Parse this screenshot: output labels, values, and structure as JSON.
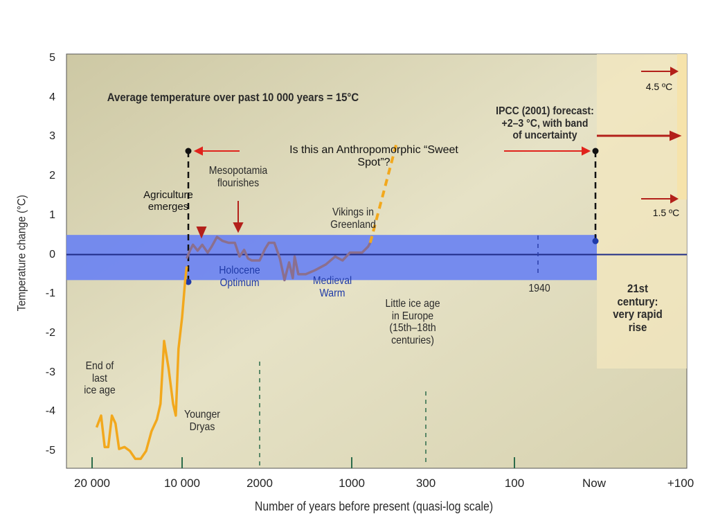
{
  "chart_data": {
    "type": "line",
    "xlabel": "Number of years before present (quasi-log scale)",
    "ylabel": "Temperature change (°C)",
    "ylim": [
      -5.3,
      5
    ],
    "yticks": [
      "5",
      "4",
      "3",
      "2",
      "1",
      "0",
      "-1",
      "-2",
      "-3",
      "-4",
      "-5"
    ],
    "xticks": [
      "20 000",
      "10 000",
      "2000",
      "1000",
      "300",
      "100",
      "Now",
      "+100"
    ],
    "grid": false,
    "band": {
      "label": "Anthropomorphic sweet spot band",
      "ymin": -0.65,
      "ymax": 0.5,
      "color": "#6f86f0"
    },
    "series": [
      {
        "color": "#f2a81d",
        "points": [
          [
            0.05,
            -4.4
          ],
          [
            0.1,
            -4.1
          ],
          [
            0.14,
            -4.9
          ],
          [
            0.18,
            -4.9
          ],
          [
            0.22,
            -4.1
          ],
          [
            0.26,
            -4.3
          ],
          [
            0.3,
            -4.95
          ],
          [
            0.36,
            -4.9
          ],
          [
            0.42,
            -5.0
          ],
          [
            0.48,
            -5.2
          ],
          [
            0.54,
            -5.2
          ],
          [
            0.6,
            -5.0
          ],
          [
            0.66,
            -4.5
          ],
          [
            0.72,
            -4.2
          ],
          [
            0.76,
            -3.8
          ],
          [
            0.8,
            -2.2
          ],
          [
            0.85,
            -2.9
          ],
          [
            0.9,
            -3.8
          ],
          [
            0.93,
            -4.1
          ],
          [
            0.96,
            -2.4
          ],
          [
            1.0,
            -1.6
          ],
          [
            1.04,
            -0.65
          ],
          [
            1.06,
            -0.3
          ]
        ]
      },
      {
        "color": "#8b6f8e",
        "points": [
          [
            1.06,
            -0.1
          ],
          [
            1.1,
            0.1
          ],
          [
            1.14,
            0.25
          ],
          [
            1.2,
            0.1
          ],
          [
            1.26,
            0.25
          ],
          [
            1.33,
            0.05
          ],
          [
            1.38,
            0.2
          ],
          [
            1.45,
            0.45
          ],
          [
            1.52,
            0.35
          ],
          [
            1.6,
            0.3
          ],
          [
            1.68,
            0.3
          ],
          [
            1.74,
            -0.05
          ],
          [
            1.8,
            0.12
          ],
          [
            1.85,
            -0.1
          ],
          [
            1.9,
            -0.15
          ],
          [
            2.0,
            -0.15
          ],
          [
            2.06,
            0.15
          ],
          [
            2.1,
            0.3
          ],
          [
            2.16,
            0.3
          ],
          [
            2.22,
            -0.1
          ],
          [
            2.27,
            -0.65
          ],
          [
            2.32,
            -0.2
          ],
          [
            2.36,
            -0.6
          ],
          [
            2.38,
            -0.05
          ],
          [
            2.42,
            -0.5
          ],
          [
            2.5,
            -0.5
          ],
          [
            2.6,
            -0.4
          ],
          [
            2.72,
            -0.25
          ],
          [
            2.82,
            -0.05
          ],
          [
            2.9,
            -0.15
          ],
          [
            2.98,
            0.05
          ],
          [
            3.06,
            0.05
          ],
          [
            3.14,
            0.05
          ],
          [
            3.22,
            0.2
          ],
          [
            3.25,
            0.3
          ]
        ]
      },
      {
        "color": "#f2a81d",
        "dashed": true,
        "points": [
          [
            3.25,
            0.3
          ],
          [
            3.6,
            2.8
          ]
        ]
      }
    ]
  },
  "annotations": {
    "avg_temp": "Average temperature over past 10 000 years = 15°C",
    "ipcc": "IPCC (2001) forecast:\n+2–3 °C, with band\nof uncertainty",
    "sweet_spot": "Is this an Anthropomorphic “Sweet\nSpot”?",
    "mesopotamia": "Mesopotamia\nflourishes",
    "agriculture": "Agriculture\nemerges",
    "vikings": "Vikings in\nGreenland",
    "holocene": "Holocene\nOptimum",
    "medieval": "Medieval\nWarm",
    "little_ice_age": "Little ice age\nin Europe\n(15th–18th\ncenturies)",
    "year_1940": "1940",
    "century21": "21st\ncentury:\nvery rapid\nrise",
    "end_ice_age": "End of\nlast\nice age",
    "younger_dryas": "Younger\nDryas",
    "temp_45": "4.5 ºC",
    "temp_15": "1.5 ºC"
  }
}
